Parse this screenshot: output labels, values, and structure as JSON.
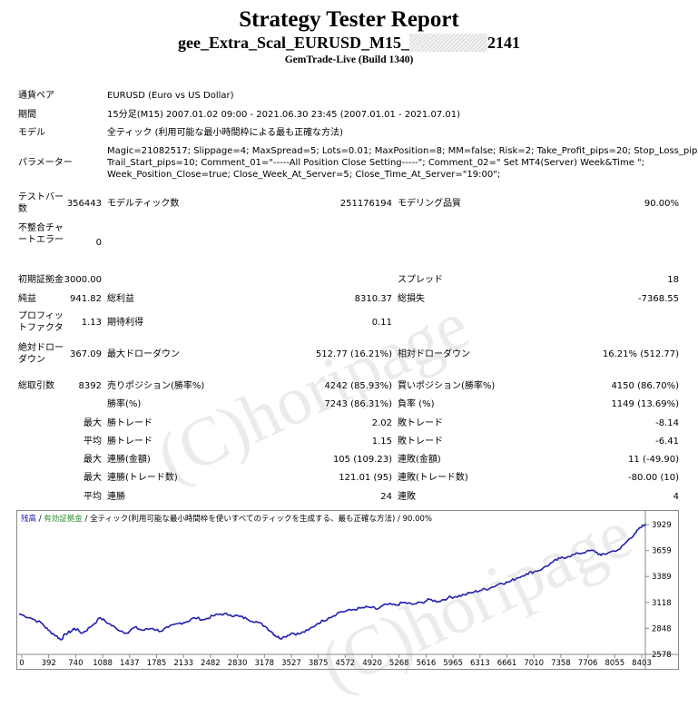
{
  "header": {
    "title": "Strategy Tester Report",
    "subtitle_left": "gee_Extra_Scal_EURUSD_M15_",
    "subtitle_right": "2141",
    "build": "GemTrade-Live (Build 1340)"
  },
  "watermark": "(C)horipage",
  "info": {
    "pair_label": "通貨ペア",
    "pair_value": "EURUSD (Euro vs US Dollar)",
    "period_label": "期間",
    "period_value": "15分足(M15) 2007.01.02 09:00 - 2021.06.30 23:45 (2007.01.01 - 2021.07.01)",
    "model_label": "モデル",
    "model_value": "全ティック (利用可能な最小時間枠による最も正確な方法)",
    "params_label": "パラメーター",
    "params_lines": [
      "Magic=21082517; Slippage=4; MaxSpread=5; Lots=0.01; MaxPosition=8; MM=false; Risk=2; Take_Profit_pips=20; Stop_Loss_pips=-80;",
      "Trail_Start_pips=10; Comment_01=\"-----All Position Close Setting-----\"; Comment_02=\" Set MT4(Server) Week&Time \";",
      "Week_Position_Close=true; Close_Week_At_Server=5; Close_Time_At_Server=\"19:00\";"
    ],
    "bars_label": "テストバー数",
    "bars_value": "356443",
    "ticks_label": "モデルティック数",
    "ticks_value": "251176194",
    "quality_label": "モデリング品質",
    "quality_value": "90.00%",
    "mismatch_label": "不整合チャートエラー",
    "mismatch_value": "0"
  },
  "stats": {
    "deposit_label": "初期証拠金",
    "deposit_value": "3000.00",
    "spread_label": "スプレッド",
    "spread_value": "18",
    "net_label": "純益",
    "net_value": "941.82",
    "gross_profit_label": "総利益",
    "gross_profit_value": "8310.37",
    "gross_loss_label": "総損失",
    "gross_loss_value": "-7368.55",
    "pf_label": "プロフィットファクタ",
    "pf_value": "1.13",
    "expected_label": "期待利得",
    "expected_value": "0.11",
    "abs_dd_label": "絶対ドローダウン",
    "abs_dd_value": "367.09",
    "max_dd_label": "最大ドローダウン",
    "max_dd_value": "512.77 (16.21%)",
    "rel_dd_label": "相対ドローダウン",
    "rel_dd_value": "16.21% (512.77)",
    "total_trades_label": "総取引数",
    "total_trades_value": "8392",
    "short_label": "売りポジション(勝率%)",
    "short_value": "4242 (85.93%)",
    "long_label": "買いポジション(勝率%)",
    "long_value": "4150 (86.70%)",
    "win_pct_label": "勝率(%)",
    "win_pct_value": "7243 (86.31%)",
    "loss_pct_label": "負率 (%)",
    "loss_pct_value": "1149 (13.69%)",
    "max_label": "最大",
    "avg_label": "平均",
    "largest_win_label": "勝トレード",
    "largest_win_value": "2.02",
    "largest_loss_label": "敗トレード",
    "largest_loss_value": "-8.14",
    "avg_win_label": "勝トレード",
    "avg_win_value": "1.15",
    "avg_loss_label": "敗トレード",
    "avg_loss_value": "-6.41",
    "max_cons_wins_amt_label": "連勝(金額)",
    "max_cons_wins_amt_value": "105 (109.23)",
    "max_cons_losses_amt_label": "連敗(金額)",
    "max_cons_losses_amt_value": "11 (-49.90)",
    "max_cons_profit_label": "連勝(トレード数)",
    "max_cons_profit_value": "121.01 (95)",
    "max_cons_loss_label": "連敗(トレード数)",
    "max_cons_loss_value": "-80.00 (10)",
    "avg_cons_wins_label": "連勝",
    "avg_cons_wins_value": "24",
    "avg_cons_losses_label": "連敗",
    "avg_cons_losses_value": "4"
  },
  "chart_legend": {
    "balance": "残高",
    "sep1": " / ",
    "equity": "有効証拠金",
    "sep2": " / ",
    "model": "全ティック(利用可能な最小時間枠を使いすべてのティックを生成する、最も正確な方法)",
    "sep3": " / ",
    "quality": "90.00%"
  },
  "colors": {
    "balance": "#1e1eb0",
    "equity": "#2e8b2e",
    "axis": "#8a8a8a"
  },
  "chart_data": {
    "type": "line",
    "x_ticks": [
      "0",
      "392",
      "740",
      "1088",
      "1437",
      "1785",
      "2133",
      "2482",
      "2830",
      "3178",
      "3527",
      "3875",
      "4572",
      "4920",
      "5268",
      "5616",
      "5965",
      "6313",
      "6661",
      "7010",
      "7358",
      "7706",
      "8055",
      "8403"
    ],
    "y_ticks": [
      "3929",
      "3659",
      "3389",
      "3118",
      "2848",
      "2578"
    ],
    "ylim": [
      2578,
      3942
    ],
    "xlim": [
      0,
      8392
    ],
    "series": [
      {
        "values": [
          [
            0,
            3000
          ],
          [
            150,
            2960
          ],
          [
            300,
            2905
          ],
          [
            392,
            2830
          ],
          [
            500,
            2770
          ],
          [
            560,
            2730
          ],
          [
            620,
            2790
          ],
          [
            700,
            2820
          ],
          [
            740,
            2850
          ],
          [
            850,
            2800
          ],
          [
            950,
            2860
          ],
          [
            1088,
            2960
          ],
          [
            1200,
            2900
          ],
          [
            1300,
            2850
          ],
          [
            1437,
            2800
          ],
          [
            1550,
            2860
          ],
          [
            1650,
            2830
          ],
          [
            1785,
            2850
          ],
          [
            1900,
            2820
          ],
          [
            2000,
            2860
          ],
          [
            2133,
            2900
          ],
          [
            2250,
            2920
          ],
          [
            2350,
            2960
          ],
          [
            2482,
            2940
          ],
          [
            2600,
            2980
          ],
          [
            2700,
            3000
          ],
          [
            2830,
            2990
          ],
          [
            2950,
            2975
          ],
          [
            3050,
            2950
          ],
          [
            3178,
            2920
          ],
          [
            3300,
            2870
          ],
          [
            3400,
            2800
          ],
          [
            3460,
            2760
          ],
          [
            3527,
            2750
          ],
          [
            3650,
            2800
          ],
          [
            3750,
            2790
          ],
          [
            3875,
            2830
          ],
          [
            4000,
            2900
          ],
          [
            4150,
            2960
          ],
          [
            4300,
            3020
          ],
          [
            4450,
            3040
          ],
          [
            4572,
            3060
          ],
          [
            4700,
            3070
          ],
          [
            4800,
            3050
          ],
          [
            4920,
            3100
          ],
          [
            5050,
            3090
          ],
          [
            5150,
            3120
          ],
          [
            5268,
            3100
          ],
          [
            5400,
            3120
          ],
          [
            5500,
            3150
          ],
          [
            5616,
            3130
          ],
          [
            5750,
            3170
          ],
          [
            5850,
            3180
          ],
          [
            5965,
            3200
          ],
          [
            6100,
            3230
          ],
          [
            6200,
            3250
          ],
          [
            6313,
            3270
          ],
          [
            6450,
            3320
          ],
          [
            6550,
            3330
          ],
          [
            6661,
            3370
          ],
          [
            6800,
            3420
          ],
          [
            6900,
            3440
          ],
          [
            7010,
            3470
          ],
          [
            7150,
            3540
          ],
          [
            7250,
            3580
          ],
          [
            7358,
            3600
          ],
          [
            7500,
            3630
          ],
          [
            7600,
            3650
          ],
          [
            7706,
            3660
          ],
          [
            7800,
            3610
          ],
          [
            7900,
            3640
          ],
          [
            8055,
            3680
          ],
          [
            8150,
            3760
          ],
          [
            8250,
            3840
          ],
          [
            8330,
            3900
          ],
          [
            8392,
            3940
          ]
        ]
      }
    ]
  }
}
